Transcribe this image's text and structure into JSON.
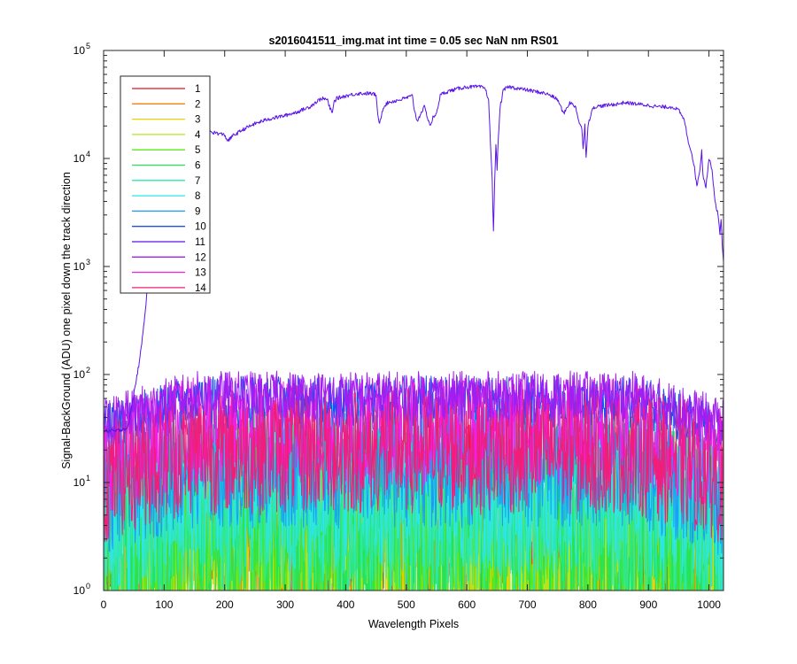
{
  "chart_data": {
    "type": "line",
    "title": "s2016041511_img.mat int time = 0.05 sec  NaN nm RS01",
    "xlabel": "Wavelength Pixels",
    "ylabel": "Signal-BackGround (ADU) one pixel down the track direction",
    "x_range": [
      0,
      1024
    ],
    "y_range": [
      1,
      100000
    ],
    "y_scale": "log",
    "grid": false,
    "legend_position": "top-left",
    "x_ticks": [
      "0",
      "100",
      "200",
      "300",
      "400",
      "500",
      "600",
      "700",
      "800",
      "900",
      "1000"
    ],
    "y_ticks": [
      {
        "base": "10",
        "exp": "0",
        "value": 1
      },
      {
        "base": "10",
        "exp": "1",
        "value": 10
      },
      {
        "base": "10",
        "exp": "2",
        "value": 100
      },
      {
        "base": "10",
        "exp": "3",
        "value": 1000
      },
      {
        "base": "10",
        "exp": "4",
        "value": 10000
      },
      {
        "base": "10",
        "exp": "5",
        "value": 100000
      }
    ],
    "series": [
      {
        "name": "1",
        "color": "#e8141e",
        "noise": {
          "center": 4,
          "amp": 1.0
        }
      },
      {
        "name": "2",
        "color": "#ff7f0e",
        "noise": {
          "center": 3,
          "amp": 0.9
        }
      },
      {
        "name": "3",
        "color": "#f0d000",
        "noise": {
          "center": 2.5,
          "amp": 0.8
        }
      },
      {
        "name": "4",
        "color": "#b5e61d",
        "noise": {
          "center": 3,
          "amp": 0.9
        }
      },
      {
        "name": "5",
        "color": "#57e81c",
        "noise": {
          "center": 4,
          "amp": 1.0
        }
      },
      {
        "name": "6",
        "color": "#22e35a",
        "noise": {
          "center": 5,
          "amp": 1.0
        }
      },
      {
        "name": "7",
        "color": "#2ee8a8",
        "noise": {
          "center": 7,
          "amp": 0.9
        }
      },
      {
        "name": "8",
        "color": "#2ee6e6",
        "noise": {
          "center": 9,
          "amp": 0.8
        }
      },
      {
        "name": "9",
        "color": "#1a9df2",
        "noise": {
          "center": 15,
          "amp": 0.6
        }
      },
      {
        "name": "10",
        "color": "#1c4ef0",
        "noise": {
          "center": 55,
          "amp": 0.25
        }
      },
      {
        "name": "11",
        "color": "#5a14e6",
        "profile": {
          "x": [
            0,
            20,
            40,
            60,
            70,
            75,
            80,
            90,
            100,
            120,
            140,
            150,
            170,
            180,
            190,
            200,
            205,
            210,
            215,
            220,
            230,
            250,
            270,
            300,
            320,
            340,
            350,
            360,
            370,
            372,
            378,
            380,
            385,
            400,
            420,
            440,
            450,
            452,
            455,
            458,
            462,
            470,
            490,
            510,
            512,
            518,
            525,
            530,
            535,
            540,
            545,
            548,
            552,
            556,
            560,
            570,
            590,
            600,
            620,
            630,
            636,
            639,
            642,
            644,
            646,
            648,
            650,
            652,
            655,
            660,
            665,
            670,
            680,
            700,
            720,
            730,
            740,
            750,
            760,
            770,
            780,
            785,
            790,
            792,
            795,
            797,
            800,
            805,
            810,
            830,
            850,
            860,
            880,
            900,
            920,
            930,
            940,
            950,
            960,
            965,
            970,
            975,
            980,
            985,
            988,
            990,
            995,
            1000,
            1005,
            1010,
            1015,
            1018,
            1020,
            1022,
            1024
          ],
          "y": [
            30,
            30,
            32,
            140,
            450,
            1200,
            2600,
            6500,
            12000,
            16000,
            17000,
            17500,
            18000,
            17500,
            17000,
            16500,
            14500,
            15500,
            16500,
            17000,
            18500,
            21000,
            23000,
            25000,
            27000,
            30000,
            33000,
            36000,
            35000,
            31000,
            26000,
            33000,
            36000,
            38000,
            40000,
            40000,
            39000,
            28000,
            21000,
            24000,
            30000,
            33000,
            35000,
            38000,
            31000,
            22000,
            27000,
            30000,
            24000,
            20000,
            25000,
            24000,
            30000,
            38000,
            40000,
            42000,
            45000,
            46000,
            46000,
            45000,
            35000,
            14000,
            6000,
            2100,
            6000,
            14000,
            8000,
            15000,
            30000,
            42000,
            45000,
            46000,
            45000,
            43000,
            41000,
            40000,
            38000,
            35000,
            26000,
            33000,
            30000,
            22000,
            19000,
            12000,
            21000,
            10000,
            20000,
            26000,
            30000,
            31000,
            32000,
            33000,
            32000,
            31000,
            30000,
            30000,
            30000,
            28000,
            22000,
            15000,
            12000,
            9000,
            5500,
            8000,
            12000,
            7000,
            5500,
            10000,
            8000,
            4000,
            3000,
            2000,
            2800,
            1600,
            1100
          ]
        }
      },
      {
        "name": "12",
        "color": "#a21ef0",
        "noise": {
          "center": 65,
          "amp": 0.22
        }
      },
      {
        "name": "13",
        "color": "#f01ee6",
        "noise": {
          "center": 30,
          "amp": 0.5
        }
      },
      {
        "name": "14",
        "color": "#f01e78",
        "noise": {
          "center": 20,
          "amp": 0.6
        }
      }
    ]
  }
}
